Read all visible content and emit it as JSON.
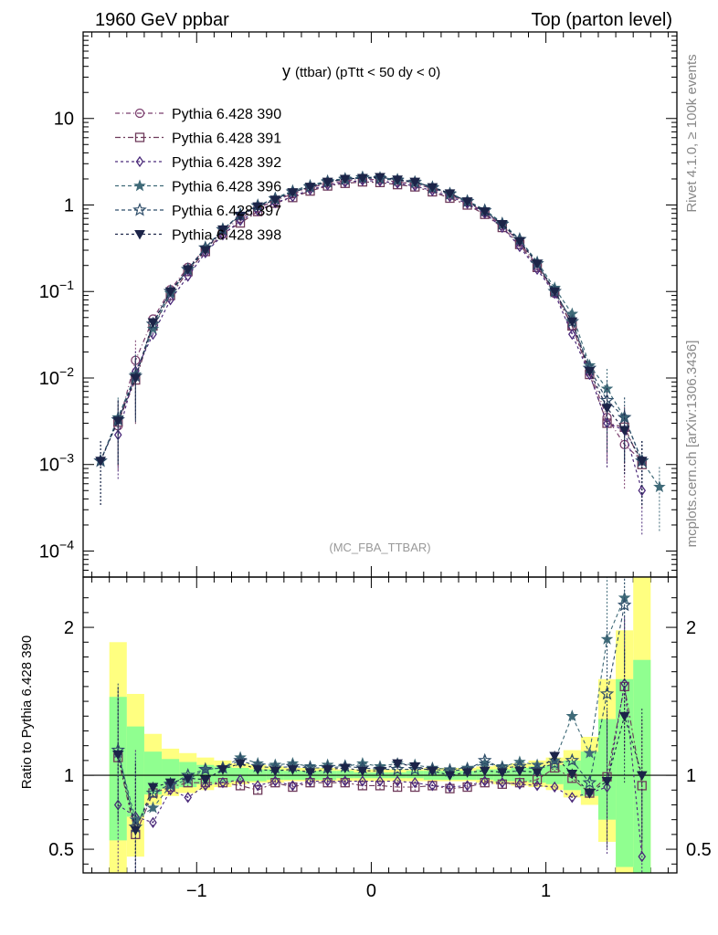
{
  "header": {
    "left": "1960 GeV ppbar",
    "right": "Top (parton level)"
  },
  "side_labels": {
    "rivet": "Rivet 4.1.0, ≥ 100k events",
    "mcplots": "mcplots.cern.ch [arXiv:1306.3436]"
  },
  "watermark": "(MC_FBA_TTBAR)",
  "colors": {
    "s390": "#7b3f6e",
    "s391": "#6e3a5a",
    "s392": "#4b2a7a",
    "s396": "#3f6a78",
    "s397": "#2f4e6a",
    "s398": "#1c2448",
    "band_yellow": "#ffff80",
    "band_green": "#90ff90"
  },
  "chart_data": [
    {
      "type": "line",
      "title_main": "y",
      "title_rest": "(ttbar) (pTtt < 50 dy < 0)",
      "xlabel": "",
      "ylabel": "",
      "yscale": "log",
      "xlim": [
        -1.65,
        1.75
      ],
      "ylim": [
        5e-05,
        100
      ],
      "y_ticks": [
        {
          "value": 0.0001,
          "base": "10",
          "exp": "−4"
        },
        {
          "value": 0.001,
          "base": "10",
          "exp": "−3"
        },
        {
          "value": 0.01,
          "base": "10",
          "exp": "−2"
        },
        {
          "value": 0.1,
          "base": "10",
          "exp": "−1"
        },
        {
          "value": 1,
          "base": "1",
          "exp": ""
        },
        {
          "value": 10,
          "base": "10",
          "exp": ""
        }
      ],
      "x": [
        -1.55,
        -1.45,
        -1.35,
        -1.25,
        -1.15,
        -1.05,
        -0.95,
        -0.85,
        -0.75,
        -0.65,
        -0.55,
        -0.45,
        -0.35,
        -0.25,
        -0.15,
        -0.05,
        0.05,
        0.15,
        0.25,
        0.35,
        0.45,
        0.55,
        0.65,
        0.75,
        0.85,
        0.95,
        1.05,
        1.15,
        1.25,
        1.35,
        1.45,
        1.55,
        1.65
      ],
      "series": [
        {
          "name": "Pythia 6.428 390",
          "marker": "circle",
          "dash": "5,3,1,3",
          "colorKey": "s390",
          "values": [
            null,
            0.0028,
            0.016,
            0.048,
            0.105,
            0.19,
            0.31,
            0.5,
            0.7,
            0.92,
            1.12,
            1.35,
            1.58,
            1.78,
            1.9,
            2.0,
            1.95,
            1.85,
            1.75,
            1.55,
            1.3,
            1.08,
            0.82,
            0.58,
            0.37,
            0.2,
            0.095,
            0.04,
            0.012,
            0.0035,
            0.0017,
            0.0011,
            null
          ]
        },
        {
          "name": "Pythia 6.428 391",
          "marker": "square",
          "dash": "6,3,2,3",
          "colorKey": "s391",
          "values": [
            null,
            0.0031,
            0.0095,
            0.04,
            0.09,
            0.17,
            0.29,
            0.47,
            0.62,
            0.84,
            1.05,
            1.22,
            1.45,
            1.66,
            1.78,
            1.85,
            1.82,
            1.72,
            1.62,
            1.42,
            1.2,
            1.0,
            0.78,
            0.55,
            0.35,
            0.19,
            0.1,
            0.04,
            0.011,
            0.003,
            0.0027,
            0.001,
            null
          ]
        },
        {
          "name": "Pythia 6.428 392",
          "marker": "diamond",
          "dash": "3,3",
          "colorKey": "s392",
          "values": [
            null,
            0.0022,
            0.012,
            0.032,
            0.08,
            0.15,
            0.28,
            0.45,
            0.66,
            0.86,
            1.06,
            1.25,
            1.5,
            1.7,
            1.83,
            1.92,
            1.88,
            1.78,
            1.66,
            1.46,
            1.25,
            1.04,
            0.8,
            0.55,
            0.33,
            0.18,
            0.095,
            0.032,
            0.011,
            0.003,
            0.0025,
            0.0005,
            null
          ]
        },
        {
          "name": "Pythia 6.428 396",
          "marker": "star-filled",
          "dash": "4,3",
          "colorKey": "s396",
          "values": [
            0.0011,
            0.0035,
            0.011,
            0.037,
            0.095,
            0.18,
            0.32,
            0.52,
            0.78,
            0.98,
            1.2,
            1.46,
            1.68,
            1.9,
            2.02,
            2.1,
            2.08,
            1.97,
            1.86,
            1.62,
            1.36,
            1.12,
            0.88,
            0.62,
            0.4,
            0.22,
            0.11,
            0.055,
            0.014,
            0.0075,
            0.0035,
            0.0011,
            0.00055
          ]
        },
        {
          "name": "Pythia 6.428 397",
          "marker": "star-open",
          "dash": "4,3",
          "colorKey": "s397",
          "values": [
            0.0011,
            0.0033,
            0.0105,
            0.042,
            0.1,
            0.18,
            0.32,
            0.52,
            0.77,
            0.98,
            1.18,
            1.42,
            1.62,
            1.85,
            1.98,
            2.06,
            2.02,
            1.93,
            1.82,
            1.58,
            1.34,
            1.1,
            0.86,
            0.6,
            0.4,
            0.21,
            0.1,
            0.045,
            0.013,
            0.0055,
            0.0035,
            0.0011,
            null
          ]
        },
        {
          "name": "Pythia 6.428 398",
          "marker": "triangle-down",
          "dash": "3,3",
          "colorKey": "s398",
          "values": [
            0.0011,
            0.0032,
            0.01,
            0.044,
            0.1,
            0.18,
            0.3,
            0.52,
            0.75,
            0.96,
            1.15,
            1.4,
            1.62,
            1.85,
            2.0,
            2.05,
            2.1,
            1.96,
            1.85,
            1.6,
            1.36,
            1.1,
            0.84,
            0.6,
            0.38,
            0.21,
            0.1,
            0.045,
            0.012,
            0.0045,
            0.0025,
            0.0011,
            null
          ]
        }
      ]
    },
    {
      "type": "line",
      "ylabel": "Ratio to Pythia 6.428 390",
      "xlabel": "",
      "xlim": [
        -1.65,
        1.75
      ],
      "ylim": [
        0.34,
        2.34
      ],
      "x_ticks": [
        {
          "value": -1,
          "label": "−1"
        },
        {
          "value": 0,
          "label": "0"
        },
        {
          "value": 1,
          "label": "1"
        }
      ],
      "y_ticks": [
        {
          "value": 0.5,
          "label": "0.5"
        },
        {
          "value": 1,
          "label": "1"
        },
        {
          "value": 2,
          "label": "2"
        }
      ],
      "band_edges": [
        -1.5,
        -1.4,
        -1.3,
        -1.2,
        -1.1,
        -1.0,
        -0.9,
        -0.8,
        -0.7,
        -0.6,
        -0.5,
        -0.4,
        -0.3,
        -0.2,
        -0.1,
        0.0,
        0.1,
        0.2,
        0.3,
        0.4,
        0.5,
        0.6,
        0.7,
        0.8,
        0.9,
        1.0,
        1.1,
        1.2,
        1.3,
        1.4,
        1.5,
        1.6
      ],
      "band_yellow": [
        [
          0.34,
          1.9
        ],
        [
          0.45,
          1.55
        ],
        [
          0.8,
          1.28
        ],
        [
          0.86,
          1.18
        ],
        [
          0.88,
          1.15
        ],
        [
          0.9,
          1.12
        ],
        [
          0.92,
          1.1
        ],
        [
          0.94,
          1.08
        ],
        [
          0.95,
          1.07
        ],
        [
          0.95,
          1.06
        ],
        [
          0.96,
          1.05
        ],
        [
          0.96,
          1.05
        ],
        [
          0.96,
          1.05
        ],
        [
          0.96,
          1.04
        ],
        [
          0.96,
          1.04
        ],
        [
          0.96,
          1.04
        ],
        [
          0.96,
          1.04
        ],
        [
          0.96,
          1.04
        ],
        [
          0.96,
          1.05
        ],
        [
          0.96,
          1.05
        ],
        [
          0.96,
          1.05
        ],
        [
          0.95,
          1.06
        ],
        [
          0.94,
          1.07
        ],
        [
          0.93,
          1.08
        ],
        [
          0.92,
          1.1
        ],
        [
          0.9,
          1.12
        ],
        [
          0.85,
          1.17
        ],
        [
          0.8,
          1.26
        ],
        [
          0.55,
          1.65
        ],
        [
          0.34,
          1.98
        ],
        [
          0.34,
          2.34
        ]
      ],
      "band_green": [
        [
          0.56,
          1.53
        ],
        [
          0.72,
          1.33
        ],
        [
          0.87,
          1.16
        ],
        [
          0.91,
          1.11
        ],
        [
          0.92,
          1.09
        ],
        [
          0.94,
          1.07
        ],
        [
          0.95,
          1.06
        ],
        [
          0.96,
          1.05
        ],
        [
          0.96,
          1.04
        ],
        [
          0.97,
          1.04
        ],
        [
          0.97,
          1.03
        ],
        [
          0.97,
          1.03
        ],
        [
          0.97,
          1.03
        ],
        [
          0.98,
          1.03
        ],
        [
          0.98,
          1.02
        ],
        [
          0.98,
          1.02
        ],
        [
          0.98,
          1.02
        ],
        [
          0.98,
          1.03
        ],
        [
          0.97,
          1.03
        ],
        [
          0.97,
          1.03
        ],
        [
          0.97,
          1.03
        ],
        [
          0.97,
          1.04
        ],
        [
          0.96,
          1.04
        ],
        [
          0.96,
          1.05
        ],
        [
          0.95,
          1.06
        ],
        [
          0.94,
          1.07
        ],
        [
          0.9,
          1.1
        ],
        [
          0.86,
          1.16
        ],
        [
          0.7,
          1.38
        ],
        [
          0.38,
          1.65
        ],
        [
          0.34,
          1.78
        ]
      ],
      "x": [
        -1.45,
        -1.35,
        -1.25,
        -1.15,
        -1.05,
        -0.95,
        -0.85,
        -0.75,
        -0.65,
        -0.55,
        -0.45,
        -0.35,
        -0.25,
        -0.15,
        -0.05,
        0.05,
        0.15,
        0.25,
        0.35,
        0.45,
        0.55,
        0.65,
        0.75,
        0.85,
        0.95,
        1.05,
        1.15,
        1.25,
        1.35,
        1.45,
        1.55
      ],
      "series": [
        {
          "name": "Pythia 6.428 391",
          "marker": "square",
          "dash": "6,3,2,3",
          "colorKey": "s391",
          "values": [
            1.12,
            0.6,
            0.88,
            0.92,
            0.95,
            0.95,
            0.95,
            0.93,
            0.9,
            0.95,
            0.92,
            0.95,
            0.95,
            0.95,
            0.93,
            0.93,
            0.92,
            0.92,
            0.93,
            0.91,
            0.92,
            0.95,
            0.94,
            0.95,
            0.97,
            1.05,
            0.98,
            0.88,
            0.99,
            1.6,
            0.93
          ]
        },
        {
          "name": "Pythia 6.428 392",
          "marker": "diamond",
          "dash": "3,3",
          "colorKey": "s392",
          "values": [
            0.8,
            0.72,
            0.68,
            0.9,
            0.85,
            0.93,
            0.95,
            0.97,
            0.93,
            0.96,
            0.93,
            0.96,
            0.96,
            0.96,
            0.96,
            0.96,
            0.96,
            0.95,
            0.93,
            0.92,
            0.93,
            0.96,
            0.95,
            0.94,
            0.93,
            0.92,
            0.85,
            0.88,
            0.92,
            1.62,
            0.45
          ]
        },
        {
          "name": "Pythia 6.428 396",
          "marker": "star-filled",
          "dash": "4,3",
          "colorKey": "s396",
          "values": [
            1.15,
            0.7,
            0.78,
            0.93,
            0.97,
            1.04,
            1.05,
            1.12,
            1.08,
            1.07,
            1.08,
            1.06,
            1.07,
            1.06,
            1.08,
            1.06,
            1.08,
            1.07,
            1.05,
            1.04,
            1.05,
            1.08,
            1.06,
            1.09,
            1.07,
            1.1,
            1.4,
            1.15,
            1.92,
            2.2,
            null
          ]
        },
        {
          "name": "Pythia 6.428 397",
          "marker": "star-open",
          "dash": "4,3",
          "colorKey": "s397",
          "values": [
            1.17,
            0.65,
            0.88,
            0.94,
            1.0,
            1.04,
            1.05,
            1.1,
            1.06,
            1.05,
            1.06,
            1.05,
            1.05,
            1.06,
            1.05,
            1.04,
            1.04,
            1.04,
            1.04,
            1.03,
            1.04,
            1.1,
            1.05,
            1.06,
            1.04,
            1.08,
            1.1,
            0.95,
            1.55,
            2.15,
            null
          ]
        },
        {
          "name": "Pythia 6.428 398",
          "marker": "triangle-down",
          "dash": "3,3",
          "colorKey": "s398",
          "values": [
            1.14,
            0.63,
            0.92,
            0.95,
            0.98,
            0.97,
            1.04,
            1.08,
            1.04,
            1.03,
            1.04,
            1.02,
            1.04,
            1.05,
            1.03,
            1.03,
            1.08,
            1.06,
            1.03,
            1.0,
            1.02,
            1.03,
            1.02,
            1.03,
            1.02,
            1.13,
            1.01,
            0.88,
            0.96,
            1.4,
            1.0
          ]
        }
      ]
    }
  ]
}
